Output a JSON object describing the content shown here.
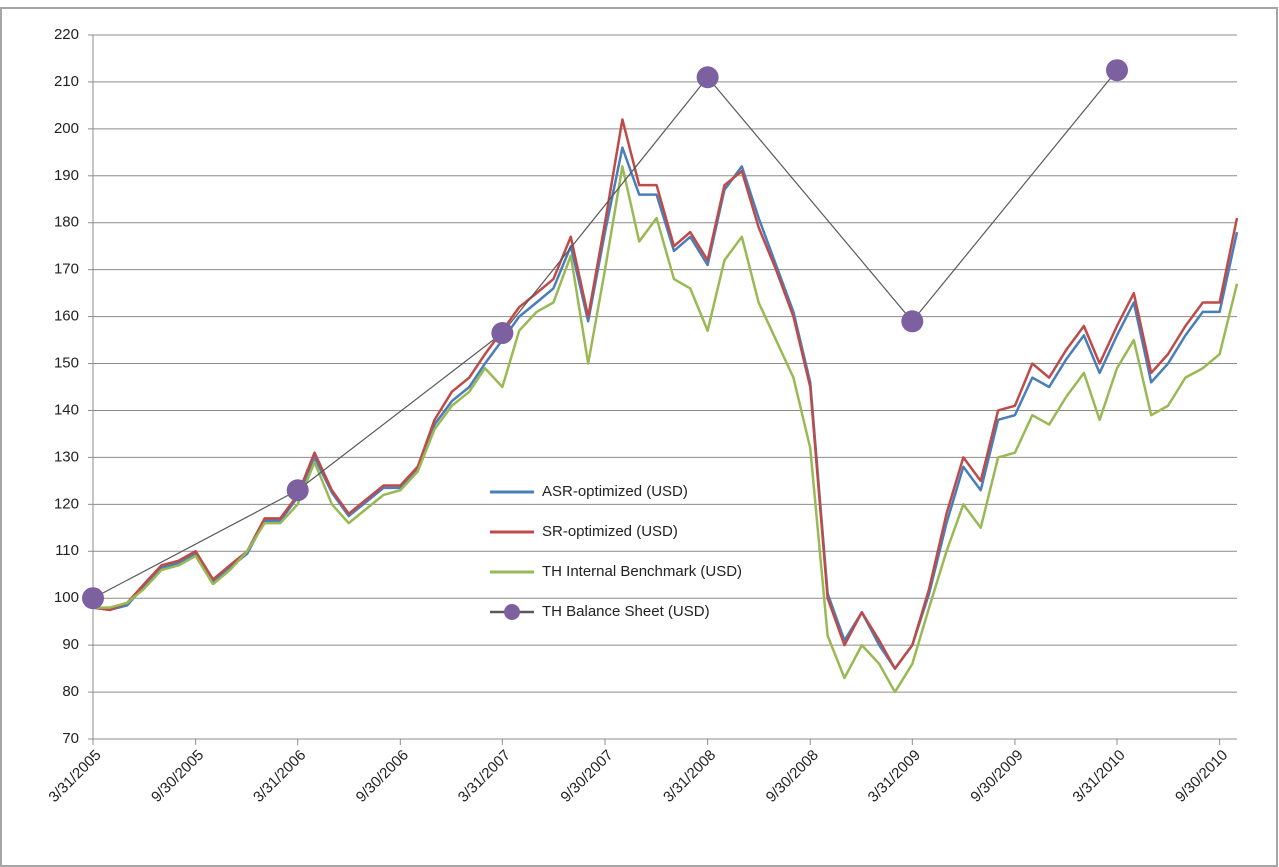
{
  "chart_data": {
    "type": "line",
    "x": [
      "3/31/2005",
      "4/30/2005",
      "5/31/2005",
      "6/30/2005",
      "7/31/2005",
      "8/31/2005",
      "9/30/2005",
      "10/31/2005",
      "11/30/2005",
      "12/31/2005",
      "1/31/2006",
      "2/28/2006",
      "3/31/2006",
      "4/30/2006",
      "5/31/2006",
      "6/30/2006",
      "7/31/2006",
      "8/31/2006",
      "9/30/2006",
      "10/31/2006",
      "11/30/2006",
      "12/31/2006",
      "1/31/2007",
      "2/28/2007",
      "3/31/2007",
      "4/30/2007",
      "5/31/2007",
      "6/30/2007",
      "7/31/2007",
      "8/31/2007",
      "9/30/2007",
      "10/31/2007",
      "11/30/2007",
      "12/31/2007",
      "1/31/2008",
      "2/29/2008",
      "3/31/2008",
      "4/30/2008",
      "5/31/2008",
      "6/30/2008",
      "7/31/2008",
      "8/31/2008",
      "9/30/2008",
      "10/31/2008",
      "11/30/2008",
      "12/31/2008",
      "1/31/2009",
      "2/28/2009",
      "3/31/2009",
      "4/30/2009",
      "5/31/2009",
      "6/30/2009",
      "7/31/2009",
      "8/31/2009",
      "9/30/2009",
      "10/31/2009",
      "11/30/2009",
      "12/31/2009",
      "1/31/2010",
      "2/28/2010",
      "3/31/2010",
      "4/30/2010",
      "5/31/2010",
      "6/30/2010",
      "7/31/2010",
      "8/31/2010",
      "9/30/2010",
      "10/31/2010"
    ],
    "series": [
      {
        "name": "ASR-optimized (USD)",
        "color": "#4a7ebb",
        "values": [
          98,
          97.5,
          98.5,
          102.5,
          106.5,
          107.5,
          109.5,
          103.5,
          106.5,
          109.5,
          116.5,
          116.5,
          121.5,
          130,
          122.5,
          117.5,
          120.5,
          123.5,
          123.5,
          127.5,
          137,
          142,
          145,
          150,
          155,
          160,
          163,
          166,
          175,
          159,
          178,
          196,
          186,
          186,
          174,
          177,
          171,
          187,
          192,
          181,
          171,
          161,
          146,
          101,
          91,
          97,
          90,
          85,
          90,
          101,
          116,
          128,
          123,
          138,
          139,
          147,
          145,
          151,
          156,
          148,
          156,
          163,
          146,
          150,
          156,
          161,
          161,
          178
        ]
      },
      {
        "name": "SR-optimized (USD)",
        "color": "#be4b48",
        "values": [
          98,
          97.5,
          99,
          103,
          107,
          108,
          110,
          104,
          107,
          110,
          117,
          117,
          122,
          131,
          123,
          118,
          121,
          124,
          124,
          128,
          138,
          144,
          147,
          152,
          157,
          162,
          165,
          168,
          177,
          160,
          180,
          202,
          188,
          188,
          175,
          178,
          172,
          188,
          191,
          179,
          170,
          160,
          145,
          100,
          90,
          97,
          91,
          85,
          90,
          102,
          118,
          130,
          125,
          140,
          141,
          150,
          147,
          153,
          158,
          150,
          158,
          165,
          148,
          152,
          158,
          163,
          163,
          181
        ]
      },
      {
        "name": "TH Internal Benchmark (USD)",
        "color": "#98b954",
        "values": [
          98,
          98,
          99,
          102,
          106,
          107,
          109,
          103,
          106,
          110,
          116,
          116,
          120,
          129,
          120,
          116,
          119,
          122,
          123,
          127,
          136,
          141,
          144,
          149,
          145,
          157,
          161,
          163,
          173,
          150,
          170,
          192,
          176,
          181,
          168,
          166,
          157,
          172,
          177,
          163,
          155,
          147,
          132,
          92,
          83,
          90,
          86,
          80,
          86,
          98,
          110,
          120,
          115,
          130,
          131,
          139,
          137,
          143,
          148,
          138,
          149,
          155,
          139,
          141,
          147,
          149,
          152,
          167
        ]
      },
      {
        "name": "TH Balance Sheet (USD)",
        "color": "#7d60a0",
        "line_color": "#595959",
        "x": [
          "3/31/2005",
          "3/31/2006",
          "3/31/2007",
          "3/31/2008",
          "3/31/2009",
          "3/31/2010"
        ],
        "values": [
          100,
          123,
          156.5,
          211,
          159,
          212.5
        ]
      }
    ],
    "xlim": [
      "3/31/2005",
      "10/31/2010"
    ],
    "xticks": [
      "3/31/2005",
      "9/30/2005",
      "3/31/2006",
      "9/30/2006",
      "3/31/2007",
      "9/30/2007",
      "3/31/2008",
      "9/30/2008",
      "3/31/2009",
      "9/30/2009",
      "3/31/2010",
      "9/30/2010"
    ],
    "ylim": [
      70,
      220
    ],
    "yticks": [
      70,
      80,
      90,
      100,
      110,
      120,
      130,
      140,
      150,
      160,
      170,
      180,
      190,
      200,
      210,
      220
    ],
    "grid": true,
    "legend": "center"
  }
}
